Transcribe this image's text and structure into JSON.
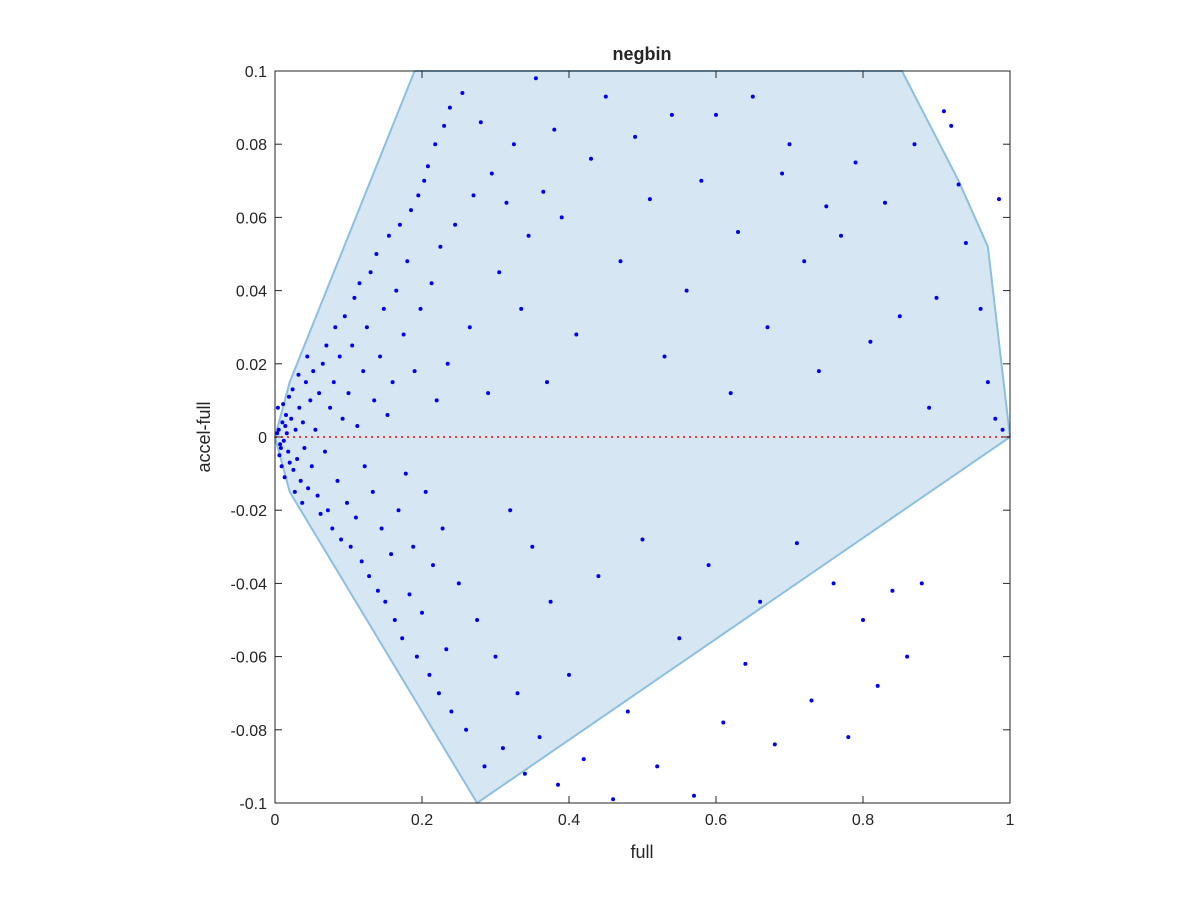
{
  "chart_data": {
    "type": "scatter",
    "title": "negbin",
    "xlabel": "full",
    "ylabel": "accel-full",
    "xlim": [
      0,
      1
    ],
    "ylim": [
      -0.1,
      0.1
    ],
    "xticks": [
      "0",
      "0.2",
      "0.4",
      "0.6",
      "0.8",
      "1"
    ],
    "xtick_values": [
      0,
      0.2,
      0.4,
      0.6,
      0.8,
      1
    ],
    "yticks": [
      "-0.1",
      "-0.08",
      "-0.06",
      "-0.04",
      "-0.02",
      "0",
      "0.02",
      "0.04",
      "0.06",
      "0.08",
      "0.1"
    ],
    "ytick_values": [
      -0.1,
      -0.08,
      -0.06,
      -0.04,
      -0.02,
      0,
      0.02,
      0.04,
      0.06,
      0.08,
      0.1
    ],
    "grid": false,
    "reference_line": {
      "y": 0,
      "style": "dotted",
      "color": "#e8403a"
    },
    "envelope_polygon": {
      "fill": "#d6e6f3",
      "stroke": "#8cbfe0",
      "x": [
        0,
        0.02,
        0.19,
        0.853,
        0.93,
        0.97,
        1.0,
        0.275,
        0.02
      ],
      "y": [
        0,
        0.015,
        0.1,
        0.1,
        0.07,
        0.052,
        0,
        -0.1,
        -0.015
      ]
    },
    "point_color": "#0000ee",
    "points": [
      [
        0.005,
        0.002
      ],
      [
        0.008,
        -0.003
      ],
      [
        0.01,
        0.004
      ],
      [
        0.012,
        -0.001
      ],
      [
        0.003,
        0.001
      ],
      [
        0.006,
        -0.005
      ],
      [
        0.015,
        0.006
      ],
      [
        0.018,
        -0.004
      ],
      [
        0.004,
        0.008
      ],
      [
        0.009,
        -0.008
      ],
      [
        0.014,
        0.003
      ],
      [
        0.02,
        -0.007
      ],
      [
        0.011,
        0.009
      ],
      [
        0.007,
        -0.002
      ],
      [
        0.016,
        0.001
      ],
      [
        0.022,
        0.005
      ],
      [
        0.025,
        -0.009
      ],
      [
        0.013,
        -0.011
      ],
      [
        0.019,
        0.011
      ],
      [
        0.028,
        0.002
      ],
      [
        0.03,
        -0.006
      ],
      [
        0.024,
        0.013
      ],
      [
        0.033,
        0.008
      ],
      [
        0.035,
        -0.012
      ],
      [
        0.027,
        -0.015
      ],
      [
        0.038,
        0.004
      ],
      [
        0.04,
        -0.003
      ],
      [
        0.042,
        0.015
      ],
      [
        0.045,
        -0.014
      ],
      [
        0.032,
        0.017
      ],
      [
        0.048,
        0.01
      ],
      [
        0.05,
        -0.008
      ],
      [
        0.037,
        -0.018
      ],
      [
        0.052,
        0.018
      ],
      [
        0.055,
        0.002
      ],
      [
        0.058,
        -0.016
      ],
      [
        0.06,
        0.012
      ],
      [
        0.044,
        0.022
      ],
      [
        0.062,
        -0.021
      ],
      [
        0.065,
        0.02
      ],
      [
        0.068,
        -0.004
      ],
      [
        0.07,
        0.025
      ],
      [
        0.072,
        -0.02
      ],
      [
        0.075,
        0.008
      ],
      [
        0.078,
        -0.025
      ],
      [
        0.08,
        0.015
      ],
      [
        0.082,
        0.03
      ],
      [
        0.085,
        -0.012
      ],
      [
        0.088,
        0.022
      ],
      [
        0.09,
        -0.028
      ],
      [
        0.092,
        0.005
      ],
      [
        0.095,
        0.033
      ],
      [
        0.098,
        -0.018
      ],
      [
        0.1,
        0.012
      ],
      [
        0.103,
        -0.03
      ],
      [
        0.105,
        0.025
      ],
      [
        0.108,
        0.038
      ],
      [
        0.11,
        -0.022
      ],
      [
        0.112,
        0.003
      ],
      [
        0.115,
        0.042
      ],
      [
        0.118,
        -0.034
      ],
      [
        0.12,
        0.018
      ],
      [
        0.122,
        -0.008
      ],
      [
        0.125,
        0.03
      ],
      [
        0.128,
        -0.038
      ],
      [
        0.13,
        0.045
      ],
      [
        0.133,
        -0.015
      ],
      [
        0.135,
        0.01
      ],
      [
        0.138,
        0.05
      ],
      [
        0.14,
        -0.042
      ],
      [
        0.143,
        0.022
      ],
      [
        0.145,
        -0.025
      ],
      [
        0.148,
        0.035
      ],
      [
        0.15,
        -0.045
      ],
      [
        0.153,
        0.006
      ],
      [
        0.155,
        0.055
      ],
      [
        0.158,
        -0.032
      ],
      [
        0.16,
        0.015
      ],
      [
        0.163,
        -0.05
      ],
      [
        0.165,
        0.04
      ],
      [
        0.168,
        -0.02
      ],
      [
        0.17,
        0.058
      ],
      [
        0.173,
        -0.055
      ],
      [
        0.175,
        0.028
      ],
      [
        0.178,
        -0.01
      ],
      [
        0.18,
        0.048
      ],
      [
        0.183,
        -0.043
      ],
      [
        0.185,
        0.062
      ],
      [
        0.188,
        -0.03
      ],
      [
        0.19,
        0.018
      ],
      [
        0.193,
        -0.06
      ],
      [
        0.195,
        0.066
      ],
      [
        0.198,
        0.035
      ],
      [
        0.2,
        -0.048
      ],
      [
        0.203,
        0.07
      ],
      [
        0.205,
        -0.015
      ],
      [
        0.208,
        0.074
      ],
      [
        0.21,
        -0.065
      ],
      [
        0.213,
        0.042
      ],
      [
        0.215,
        -0.035
      ],
      [
        0.218,
        0.08
      ],
      [
        0.22,
        0.01
      ],
      [
        0.223,
        -0.07
      ],
      [
        0.225,
        0.052
      ],
      [
        0.228,
        -0.025
      ],
      [
        0.23,
        0.085
      ],
      [
        0.233,
        -0.058
      ],
      [
        0.235,
        0.02
      ],
      [
        0.238,
        0.09
      ],
      [
        0.24,
        -0.075
      ],
      [
        0.245,
        0.058
      ],
      [
        0.25,
        -0.04
      ],
      [
        0.255,
        0.094
      ],
      [
        0.26,
        -0.08
      ],
      [
        0.265,
        0.03
      ],
      [
        0.27,
        0.066
      ],
      [
        0.275,
        -0.05
      ],
      [
        0.28,
        0.086
      ],
      [
        0.285,
        -0.09
      ],
      [
        0.29,
        0.012
      ],
      [
        0.295,
        0.072
      ],
      [
        0.3,
        -0.06
      ],
      [
        0.305,
        0.045
      ],
      [
        0.31,
        -0.085
      ],
      [
        0.315,
        0.064
      ],
      [
        0.32,
        -0.02
      ],
      [
        0.325,
        0.08
      ],
      [
        0.33,
        -0.07
      ],
      [
        0.335,
        0.035
      ],
      [
        0.34,
        -0.092
      ],
      [
        0.345,
        0.055
      ],
      [
        0.35,
        -0.03
      ],
      [
        0.355,
        0.098
      ],
      [
        0.36,
        -0.082
      ],
      [
        0.365,
        0.067
      ],
      [
        0.37,
        0.015
      ],
      [
        0.375,
        -0.045
      ],
      [
        0.38,
        0.084
      ],
      [
        0.385,
        -0.095
      ],
      [
        0.39,
        0.06
      ],
      [
        0.4,
        -0.065
      ],
      [
        0.41,
        0.028
      ],
      [
        0.42,
        -0.088
      ],
      [
        0.43,
        0.076
      ],
      [
        0.44,
        -0.038
      ],
      [
        0.45,
        0.093
      ],
      [
        0.46,
        -0.099
      ],
      [
        0.47,
        0.048
      ],
      [
        0.48,
        -0.075
      ],
      [
        0.49,
        0.082
      ],
      [
        0.5,
        -0.028
      ],
      [
        0.51,
        0.065
      ],
      [
        0.52,
        -0.09
      ],
      [
        0.53,
        0.022
      ],
      [
        0.54,
        0.088
      ],
      [
        0.55,
        -0.055
      ],
      [
        0.56,
        0.04
      ],
      [
        0.57,
        -0.098
      ],
      [
        0.58,
        0.07
      ],
      [
        0.59,
        -0.035
      ],
      [
        0.6,
        0.088
      ],
      [
        0.61,
        -0.078
      ],
      [
        0.62,
        0.012
      ],
      [
        0.63,
        0.056
      ],
      [
        0.64,
        -0.062
      ],
      [
        0.65,
        0.093
      ],
      [
        0.66,
        -0.045
      ],
      [
        0.67,
        0.03
      ],
      [
        0.68,
        -0.084
      ],
      [
        0.69,
        0.072
      ],
      [
        0.7,
        0.08
      ],
      [
        0.71,
        -0.029
      ],
      [
        0.72,
        0.048
      ],
      [
        0.73,
        -0.072
      ],
      [
        0.74,
        0.018
      ],
      [
        0.75,
        0.063
      ],
      [
        0.76,
        -0.04
      ],
      [
        0.77,
        0.055
      ],
      [
        0.78,
        -0.082
      ],
      [
        0.79,
        0.075
      ],
      [
        0.8,
        -0.05
      ],
      [
        0.81,
        0.026
      ],
      [
        0.82,
        -0.068
      ],
      [
        0.83,
        0.064
      ],
      [
        0.84,
        -0.042
      ],
      [
        0.85,
        0.033
      ],
      [
        0.86,
        -0.06
      ],
      [
        0.87,
        0.08
      ],
      [
        0.88,
        -0.04
      ],
      [
        0.89,
        0.008
      ],
      [
        0.9,
        0.038
      ],
      [
        0.91,
        0.089
      ],
      [
        0.92,
        0.085
      ],
      [
        0.93,
        0.069
      ],
      [
        0.94,
        0.053
      ],
      [
        0.96,
        0.035
      ],
      [
        0.97,
        0.015
      ],
      [
        0.98,
        0.005
      ],
      [
        0.985,
        0.065
      ],
      [
        0.99,
        0.002
      ]
    ]
  }
}
